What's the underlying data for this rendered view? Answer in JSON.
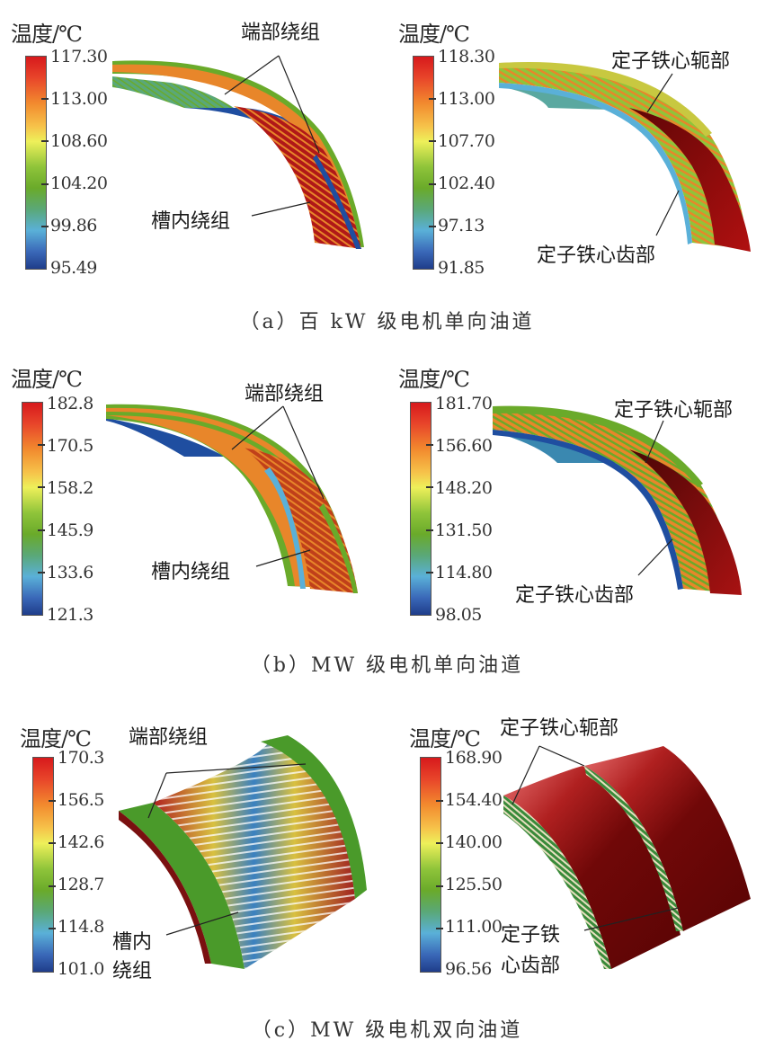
{
  "figure": {
    "panels": [
      {
        "id": "a",
        "caption": "（a）百 kW 级电机单向油道",
        "left": {
          "unit_label": "温度/℃",
          "ticks": [
            "117.30",
            "113.00",
            "108.60",
            "104.20",
            "99.86",
            "95.49"
          ],
          "annotations": {
            "end_winding": "端部绕组",
            "slot_winding": "槽内绕组"
          }
        },
        "right": {
          "unit_label": "温度/℃",
          "ticks": [
            "118.30",
            "113.00",
            "107.70",
            "102.40",
            "97.13",
            "91.85"
          ],
          "annotations": {
            "yoke": "定子铁心轭部",
            "teeth": "定子铁心齿部"
          }
        }
      },
      {
        "id": "b",
        "caption": "（b）MW 级电机单向油道",
        "left": {
          "unit_label": "温度/℃",
          "ticks": [
            "182.8",
            "170.5",
            "158.2",
            "145.9",
            "133.6",
            "121.3"
          ],
          "annotations": {
            "end_winding": "端部绕组",
            "slot_winding": "槽内绕组"
          }
        },
        "right": {
          "unit_label": "温度/℃",
          "ticks": [
            "181.70",
            "156.60",
            "148.20",
            "131.50",
            "114.80",
            "98.05"
          ],
          "annotations": {
            "yoke": "定子铁心轭部",
            "teeth": "定子铁心齿部"
          }
        }
      },
      {
        "id": "c",
        "caption": "（c）MW 级电机双向油道",
        "left": {
          "unit_label": "温度/℃",
          "ticks": [
            "170.3",
            "156.5",
            "142.6",
            "128.7",
            "114.8",
            "101.0"
          ],
          "annotations": {
            "end_winding": "端部绕组",
            "slot_winding_line1": "槽内",
            "slot_winding_line2": "绕组"
          }
        },
        "right": {
          "unit_label": "温度/℃",
          "ticks": [
            "168.90",
            "154.40",
            "140.00",
            "125.50",
            "111.00",
            "96.56"
          ],
          "annotations": {
            "yoke": "定子铁心轭部",
            "teeth_line1": "定子铁",
            "teeth_line2": "心齿部"
          }
        }
      }
    ]
  },
  "chart_data": [
    {
      "type": "heatmap",
      "title": "（a）百 kW 级电机单向油道 — 绕组温度",
      "colorbar_label": "温度/℃",
      "range": [
        95.49,
        117.3
      ],
      "colorbar_ticks": [
        117.3,
        113.0,
        108.6,
        104.2,
        99.86,
        95.49
      ],
      "annotations": [
        "端部绕组",
        "槽内绕组"
      ]
    },
    {
      "type": "heatmap",
      "title": "（a）百 kW 级电机单向油道 — 定子铁心温度",
      "colorbar_label": "温度/℃",
      "range": [
        91.85,
        118.3
      ],
      "colorbar_ticks": [
        118.3,
        113.0,
        107.7,
        102.4,
        97.13,
        91.85
      ],
      "annotations": [
        "定子铁心轭部",
        "定子铁心齿部"
      ]
    },
    {
      "type": "heatmap",
      "title": "（b）MW 级电机单向油道 — 绕组温度",
      "colorbar_label": "温度/℃",
      "range": [
        121.3,
        182.8
      ],
      "colorbar_ticks": [
        182.8,
        170.5,
        158.2,
        145.9,
        133.6,
        121.3
      ],
      "annotations": [
        "端部绕组",
        "槽内绕组"
      ]
    },
    {
      "type": "heatmap",
      "title": "（b）MW 级电机单向油道 — 定子铁心温度",
      "colorbar_label": "温度/℃",
      "range": [
        98.05,
        181.7
      ],
      "colorbar_ticks": [
        181.7,
        156.6,
        148.2,
        131.5,
        114.8,
        98.05
      ],
      "annotations": [
        "定子铁心轭部",
        "定子铁心齿部"
      ]
    },
    {
      "type": "heatmap",
      "title": "（c）MW 级电机双向油道 — 绕组温度",
      "colorbar_label": "温度/℃",
      "range": [
        101.0,
        170.3
      ],
      "colorbar_ticks": [
        170.3,
        156.5,
        142.6,
        128.7,
        114.8,
        101.0
      ],
      "annotations": [
        "端部绕组",
        "槽内绕组"
      ]
    },
    {
      "type": "heatmap",
      "title": "（c）MW 级电机双向油道 — 定子铁心温度",
      "colorbar_label": "温度/℃",
      "range": [
        96.56,
        168.9
      ],
      "colorbar_ticks": [
        168.9,
        154.4,
        140.0,
        125.5,
        111.0,
        96.56
      ],
      "annotations": [
        "定子铁心轭部",
        "定子铁心齿部"
      ]
    }
  ],
  "colors": {
    "red": "#c0151a",
    "dark_red": "#6e0a0a",
    "orange": "#e8862a",
    "yellow": "#e8e050",
    "green": "#6aaa2a",
    "teal": "#5aa878",
    "light_blue": "#5ab0d8",
    "blue": "#1f3d8a"
  }
}
